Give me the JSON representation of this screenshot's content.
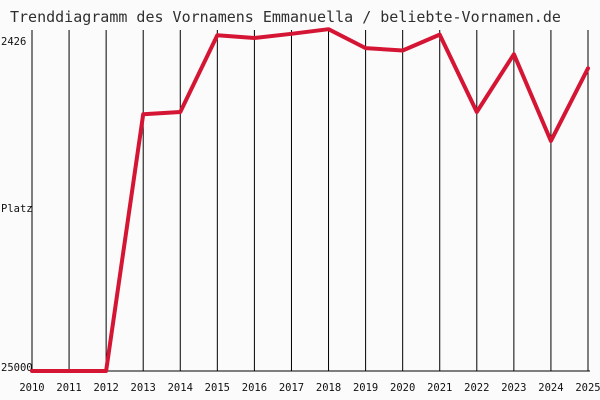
{
  "chart_data": {
    "type": "line",
    "title": "Trenddiagramm des Vornamens Emmanuella / beliebte-Vornamen.de",
    "ylabel": "Platz",
    "y_axis": {
      "top_label": "2426",
      "bottom_label": "25000",
      "inverted": true
    },
    "x": [
      "2010",
      "2011",
      "2012",
      "2013",
      "2014",
      "2015",
      "2016",
      "2017",
      "2018",
      "2019",
      "2020",
      "2021",
      "2022",
      "2023",
      "2024",
      "2025"
    ],
    "ylim": [
      2426,
      25000
    ],
    "grid": {
      "vertical": true,
      "horizontal": false
    },
    "series": [
      {
        "values": [
          25000,
          25000,
          25000,
          7700,
          7550,
          2380,
          2560,
          2280,
          1970,
          3240,
          3400,
          2330,
          7550,
          3650,
          9500,
          4600
        ],
        "color": "#d51534"
      }
    ]
  }
}
